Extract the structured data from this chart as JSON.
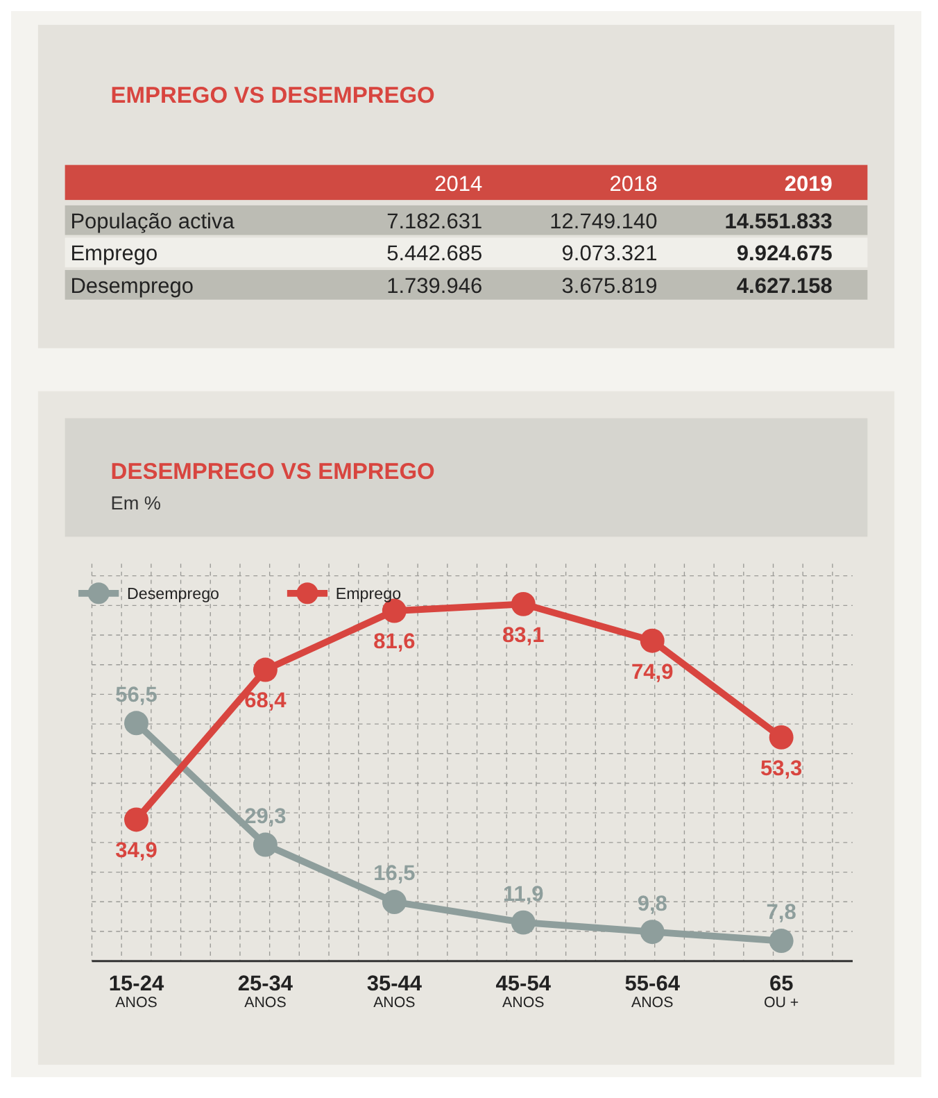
{
  "chart_data": [
    {
      "type": "other",
      "title": "EMPREGO VS DESEMPREGO",
      "categories": [
        "2014",
        "2018",
        "2019"
      ],
      "y_categories": [
        "População activa",
        "Emprego",
        "Desemprego"
      ],
      "cell_labels": [
        [
          "7.182.631",
          "12.749.140",
          "14.551.833"
        ],
        [
          "5.442.685",
          "9.073.321",
          "9.924.675"
        ],
        [
          "1.739.946",
          "3.675.819",
          "4.627.158"
        ]
      ]
    },
    {
      "type": "line",
      "title": "DESEMPREGO VS EMPREGO",
      "subtitle": "Em %",
      "categories": [
        "15-24$_{ANOS}$",
        "25-34$_{ANOS}$",
        "35-44$_{ANOS}$",
        "45-54$_{ANOS}$",
        "55-64$_{ANOS}$",
        "65$_{OU +}$"
      ],
      "series": [
        {
          "name": "Desemprego",
          "color": "#8e9e9c",
          "values": [
            56.5,
            29.3,
            16.5,
            11.9,
            9.8,
            7.8
          ],
          "value_labels": [
            "56,5",
            "29,3",
            "16,5",
            "11,9",
            "9,8",
            "7,8"
          ]
        },
        {
          "name": "Emprego",
          "color": "#d8453f",
          "values": [
            34.9,
            68.4,
            81.6,
            83.1,
            74.9,
            53.3
          ],
          "value_labels": [
            "34,9",
            "68,4",
            "81,6",
            "83,1",
            "74,9",
            "53,3"
          ]
        }
      ],
      "grid": true,
      "legend": "top left",
      "marker": "circle"
    }
  ]
}
